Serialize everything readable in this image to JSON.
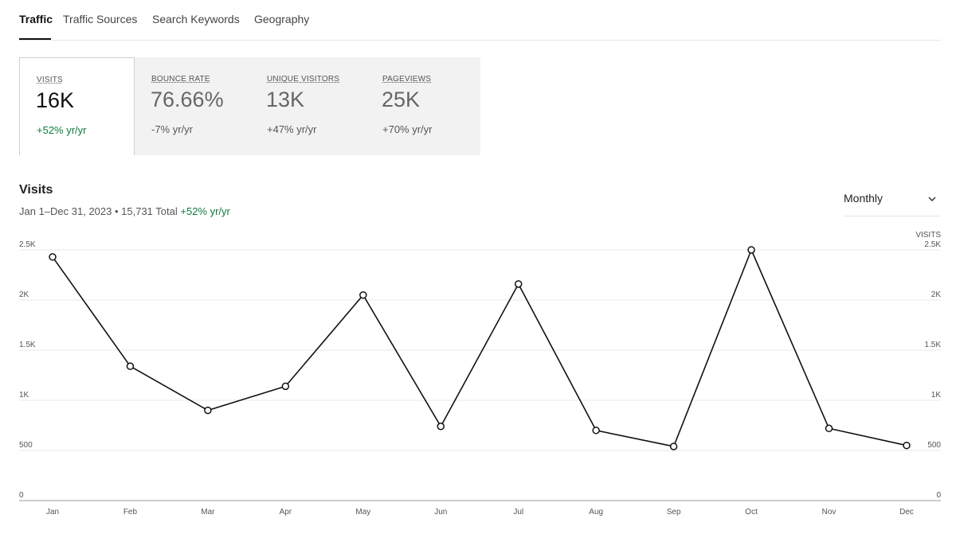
{
  "tabs": [
    {
      "label": "Traffic"
    },
    {
      "label": "Traffic Sources"
    },
    {
      "label": "Search Keywords"
    },
    {
      "label": "Geography"
    }
  ],
  "metrics": [
    {
      "label": "VISITS",
      "value": "16K",
      "change": "+52% yr/yr"
    },
    {
      "label": "BOUNCE RATE",
      "value": "76.66%",
      "change": "-7% yr/yr"
    },
    {
      "label": "UNIQUE VISITORS",
      "value": "13K",
      "change": "+47% yr/yr"
    },
    {
      "label": "PAGEVIEWS",
      "value": "25K",
      "change": "+70% yr/yr"
    }
  ],
  "chart_header": {
    "title": "Visits",
    "subtitle": "Jan 1–Dec 31, 2023 • 15,731 Total",
    "change": "+52% yr/yr"
  },
  "period_select": {
    "value": "Monthly",
    "icon": "chevron-down-icon"
  },
  "colors": {
    "positive": "#0e7a3f",
    "line": "#111111",
    "grid": "#e8e8e8"
  },
  "chart_data": {
    "type": "line",
    "categories": [
      "Jan",
      "Feb",
      "Mar",
      "Apr",
      "May",
      "Jun",
      "Jul",
      "Aug",
      "Sep",
      "Oct",
      "Nov",
      "Dec"
    ],
    "series": [
      {
        "values": [
          2430,
          1340,
          900,
          1140,
          2050,
          740,
          2160,
          700,
          540,
          2500,
          720,
          550
        ]
      }
    ],
    "y_ticks": [
      {
        "value": 0,
        "label": "0"
      },
      {
        "value": 500,
        "label": "500"
      },
      {
        "value": 1000,
        "label": "1K"
      },
      {
        "value": 1500,
        "label": "1.5K"
      },
      {
        "value": 2000,
        "label": "2K"
      },
      {
        "value": 2500,
        "label": "2.5K"
      }
    ],
    "ylim": [
      0,
      2500
    ],
    "ylabel_right": "VISITS",
    "grid": true
  }
}
